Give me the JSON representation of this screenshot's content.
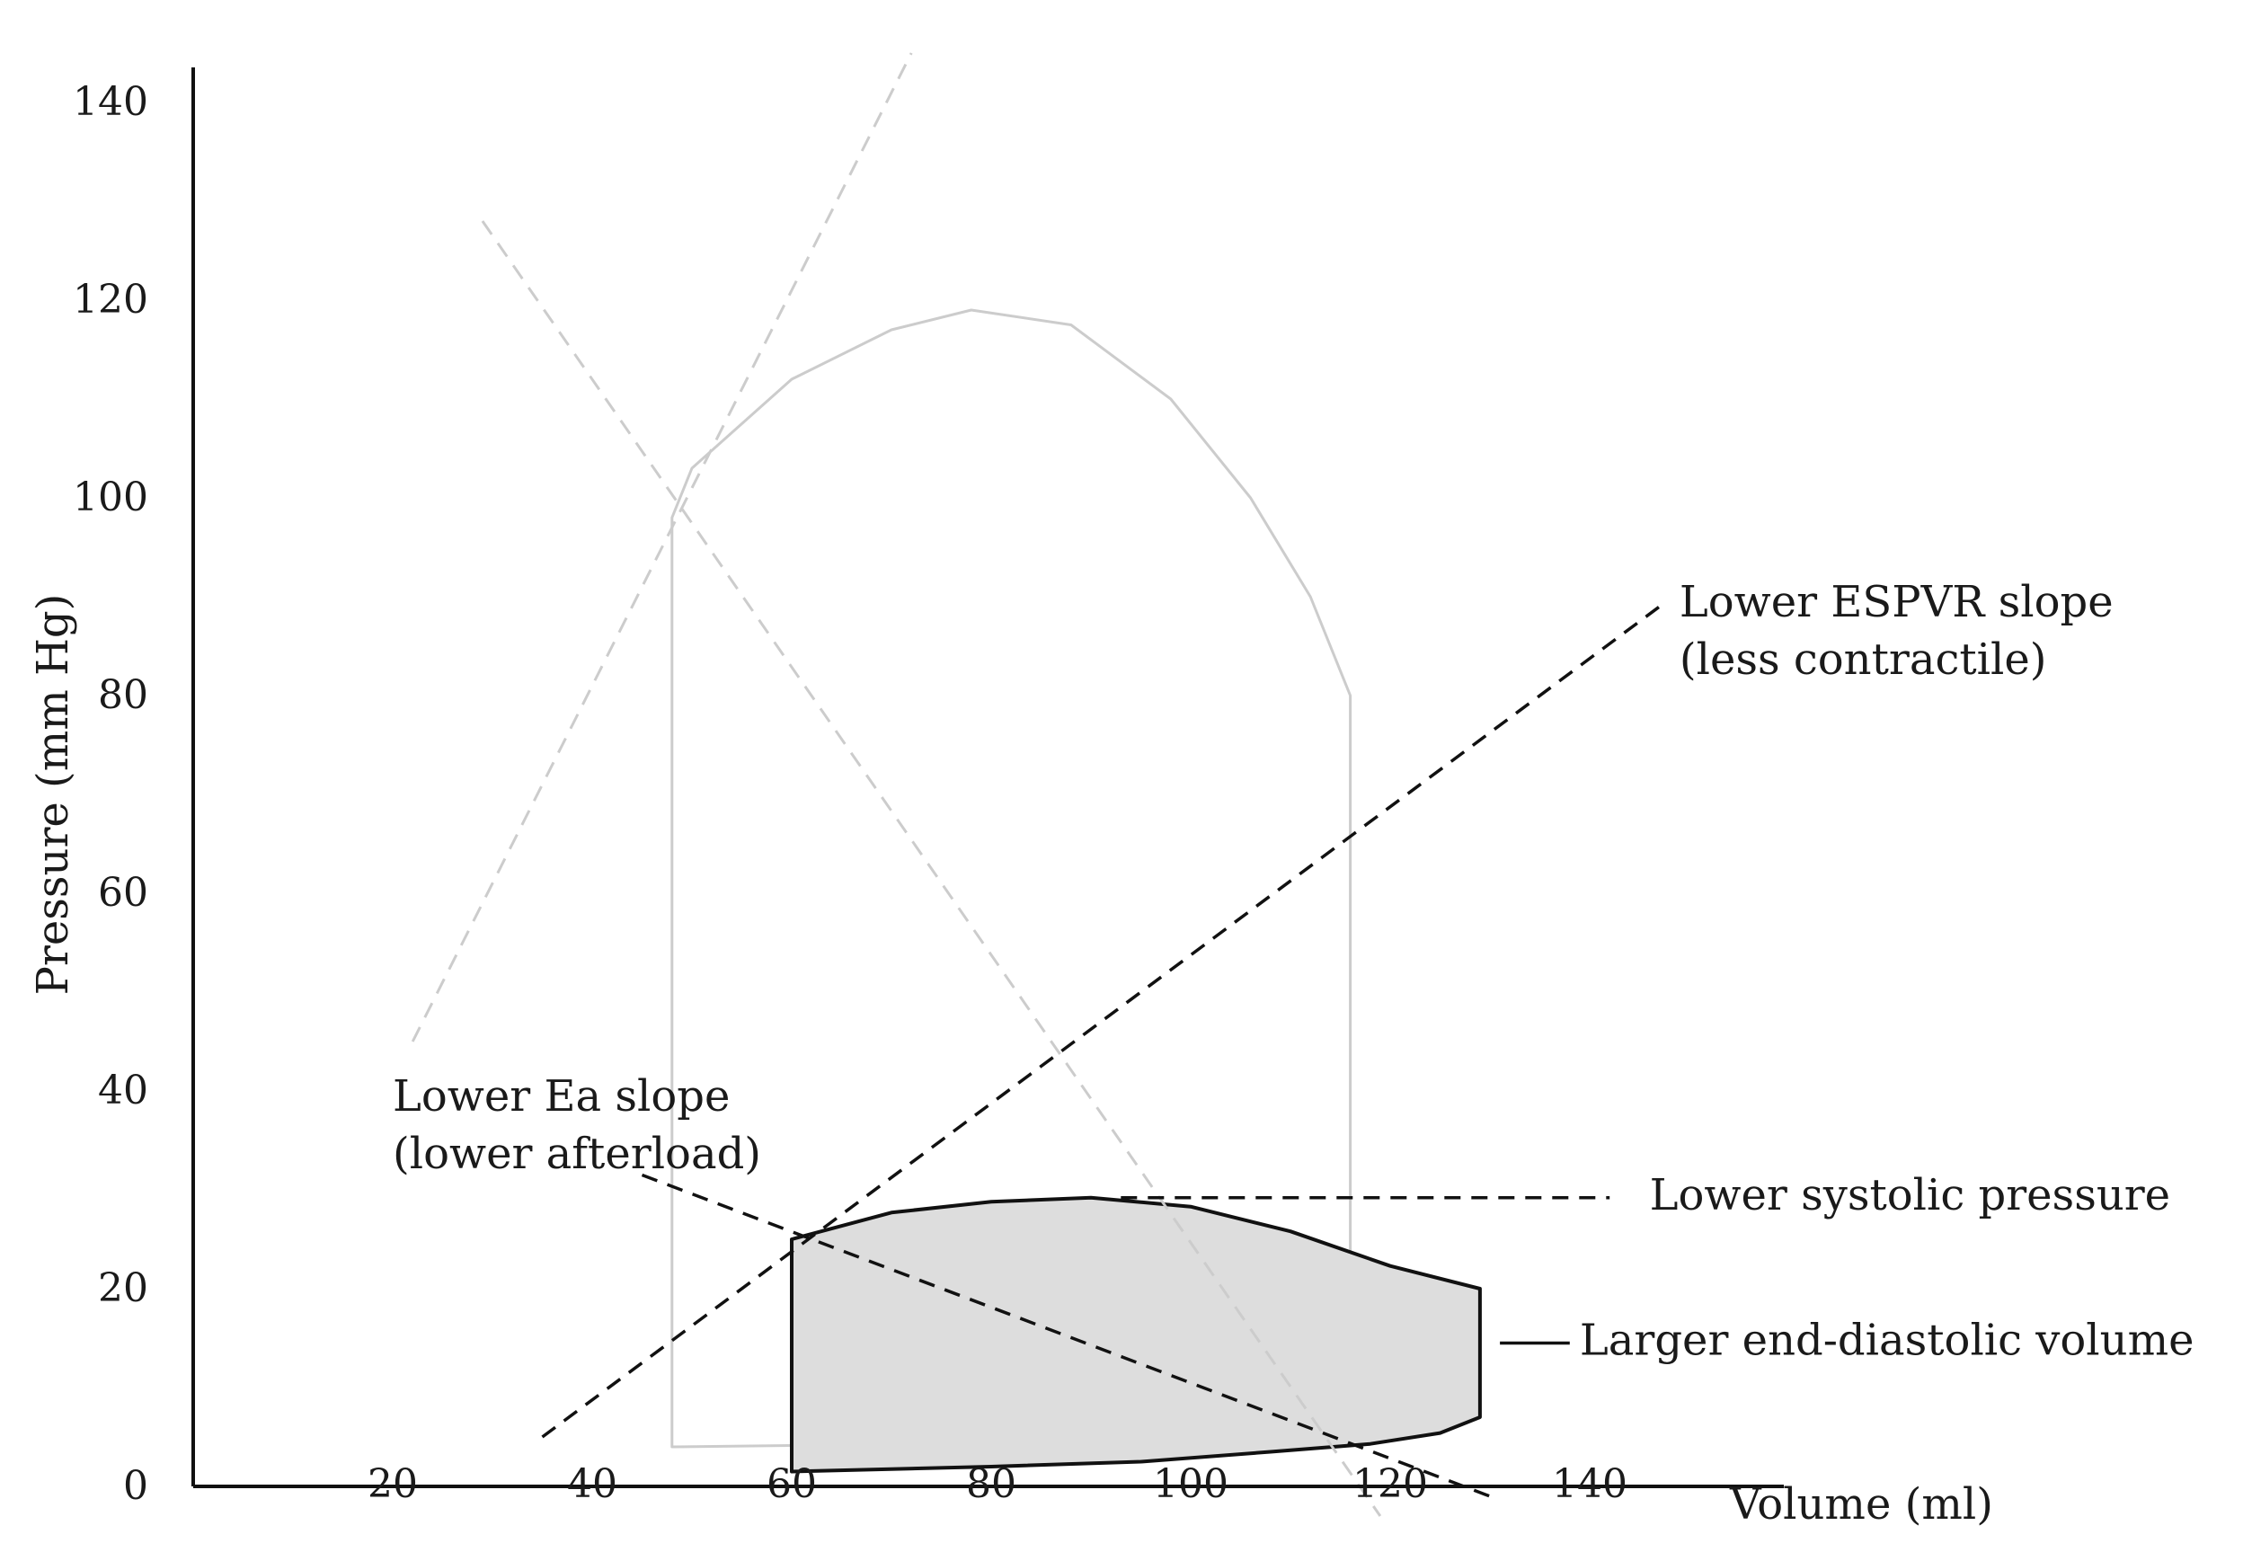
{
  "chart_data": {
    "type": "line",
    "xlabel": "Volume (ml)",
    "ylabel": "Pressure (mm Hg)",
    "xlim": [
      0,
      160
    ],
    "ylim": [
      0,
      140
    ],
    "x_ticks": [
      "20",
      "40",
      "60",
      "80",
      "100",
      "120",
      "140"
    ],
    "x_tick_values": [
      20,
      40,
      60,
      80,
      100,
      120,
      140
    ],
    "y_ticks": [
      "0",
      "20",
      "40",
      "60",
      "80",
      "100",
      "120",
      "140"
    ],
    "y_tick_values": [
      0,
      20,
      40,
      60,
      80,
      100,
      120,
      140
    ],
    "grid": false,
    "baseline_loop": {
      "color": "#cccccc",
      "points": [
        [
          48,
          4
        ],
        [
          48,
          98
        ],
        [
          50,
          103
        ],
        [
          60,
          112
        ],
        [
          70,
          117
        ],
        [
          78,
          119
        ],
        [
          88,
          117.5
        ],
        [
          98,
          110
        ],
        [
          106,
          100
        ],
        [
          112,
          90
        ],
        [
          116,
          80
        ],
        [
          116,
          9
        ],
        [
          105,
          6
        ],
        [
          85,
          4.7
        ],
        [
          65,
          4.2
        ],
        [
          48,
          4
        ]
      ]
    },
    "new_loop": {
      "color": "#111111",
      "fill": "#dddddd",
      "points": [
        [
          60,
          1.5
        ],
        [
          60,
          25
        ],
        [
          70,
          27.7
        ],
        [
          80,
          28.8
        ],
        [
          90,
          29.2
        ],
        [
          100,
          28.3
        ],
        [
          110,
          25.8
        ],
        [
          120,
          22.3
        ],
        [
          129,
          20
        ],
        [
          129,
          7
        ],
        [
          125,
          5.4
        ],
        [
          118,
          4.3
        ],
        [
          108,
          3.5
        ],
        [
          95,
          2.5
        ],
        [
          80,
          2
        ],
        [
          60,
          1.5
        ]
      ]
    },
    "reference_lines": [
      {
        "id": "baseline-espvr",
        "color": "#cccccc",
        "style": "dashed",
        "points": [
          [
            22,
            45
          ],
          [
            72,
            145
          ]
        ]
      },
      {
        "id": "baseline-ea",
        "color": "#cccccc",
        "style": "dashed",
        "points": [
          [
            29,
            128
          ],
          [
            119,
            -3
          ]
        ]
      },
      {
        "id": "lower-espvr",
        "color": "#111111",
        "style": "dashed",
        "points": [
          [
            35,
            5
          ],
          [
            147,
            89
          ]
        ]
      },
      {
        "id": "lower-ea",
        "color": "#111111",
        "style": "dashed",
        "points": [
          [
            45,
            31.5
          ],
          [
            130,
            -1
          ]
        ]
      },
      {
        "id": "lower-systolic",
        "color": "#111111",
        "style": "dashed",
        "points": [
          [
            93,
            29.2
          ],
          [
            142,
            29.2
          ]
        ]
      },
      {
        "id": "edv-marker",
        "color": "#111111",
        "style": "solid",
        "points": [
          [
            131,
            14.5
          ],
          [
            138,
            14.5
          ]
        ]
      }
    ],
    "annotations": [
      {
        "id": "espvr",
        "lines": [
          "Lower ESPVR slope",
          "(less contractile)"
        ],
        "anchor": [
          149,
          88
        ],
        "align": "start"
      },
      {
        "id": "ea",
        "lines": [
          "Lower Ea slope",
          "(lower afterload)"
        ],
        "anchor": [
          20,
          38
        ],
        "align": "start"
      },
      {
        "id": "systolic",
        "lines": [
          "Lower systolic pressure"
        ],
        "anchor": [
          146,
          28
        ],
        "align": "start"
      },
      {
        "id": "edv",
        "lines": [
          "Larger end-diastolic volume"
        ],
        "anchor": [
          139,
          13.3
        ],
        "align": "start"
      }
    ]
  }
}
